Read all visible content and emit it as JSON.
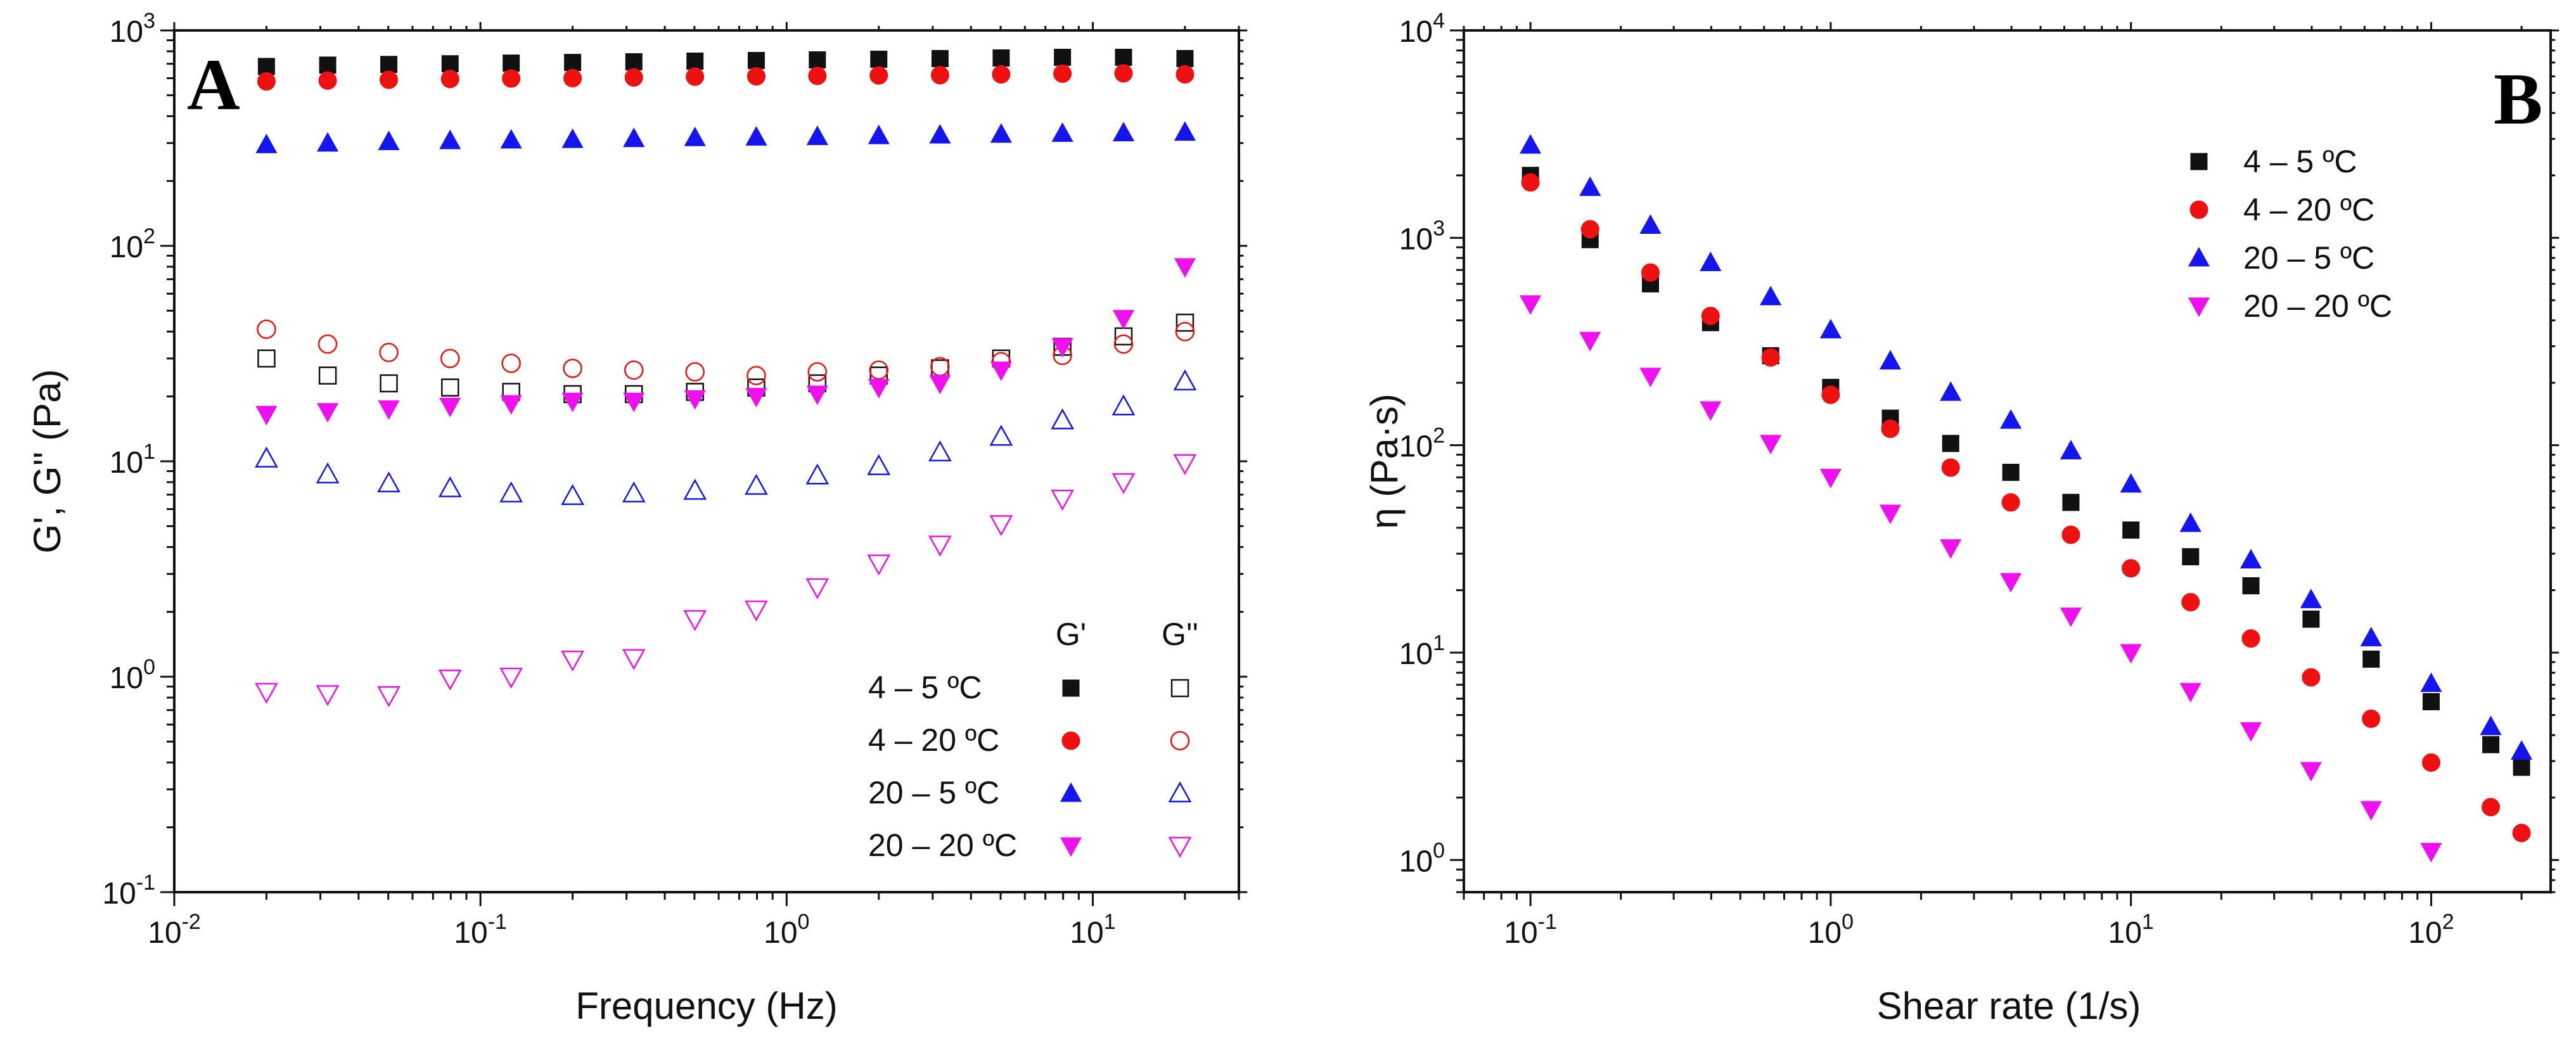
{
  "colors": {
    "black": "#111111",
    "red": "#ee1111",
    "blue": "#1515ee",
    "magenta": "#ee11ee"
  },
  "chart_data": [
    {
      "panel": "A",
      "type": "scatter",
      "x_scale": "log",
      "y_scale": "log",
      "xlim": [
        0.01,
        30
      ],
      "ylim": [
        0.1,
        1000
      ],
      "xlabel": "Frequency (Hz)",
      "ylabel": "G', G'' (Pa)",
      "x_ticks": [
        {
          "value": 0.01,
          "base": "10",
          "exp": "-2"
        },
        {
          "value": 0.1,
          "base": "10",
          "exp": "-1"
        },
        {
          "value": 1,
          "base": "10",
          "exp": "0"
        },
        {
          "value": 10,
          "base": "10",
          "exp": "1"
        }
      ],
      "y_ticks": [
        {
          "value": 0.1,
          "base": "10",
          "exp": "-1"
        },
        {
          "value": 1,
          "base": "10",
          "exp": "0"
        },
        {
          "value": 10,
          "base": "10",
          "exp": "1"
        },
        {
          "value": 100,
          "base": "10",
          "exp": "2"
        },
        {
          "value": 1000,
          "base": "10",
          "exp": "3"
        }
      ],
      "legend": {
        "position": "bottom-right",
        "column_headers": [
          "G'",
          "G''"
        ]
      },
      "x": [
        0.02,
        0.0317,
        0.0502,
        0.0796,
        0.126,
        0.2,
        0.317,
        0.502,
        0.796,
        1.26,
        2.0,
        3.17,
        5.02,
        7.96,
        12.6,
        20.0
      ],
      "series": [
        {
          "name": "4 – 5 ºC",
          "modulus": "G'",
          "color": "black",
          "marker": "square",
          "filled": true,
          "values": [
            680,
            690,
            695,
            700,
            705,
            710,
            715,
            720,
            725,
            730,
            735,
            740,
            745,
            750,
            750,
            740
          ]
        },
        {
          "name": "4 – 5 ºC",
          "modulus": "G''",
          "color": "black",
          "marker": "square",
          "filled": false,
          "values": [
            30,
            25,
            23,
            22,
            21,
            20.5,
            20.5,
            21,
            22,
            23,
            25,
            27,
            30,
            34,
            38,
            44
          ]
        },
        {
          "name": "4 – 20 ºC",
          "modulus": "G'",
          "color": "red",
          "marker": "circle",
          "filled": true,
          "values": [
            580,
            585,
            590,
            595,
            598,
            600,
            605,
            610,
            612,
            615,
            618,
            620,
            625,
            630,
            632,
            625
          ]
        },
        {
          "name": "4 – 20 ºC",
          "modulus": "G''",
          "color": "red",
          "marker": "circle",
          "filled": false,
          "values": [
            41,
            35,
            32,
            30,
            28.5,
            27,
            26.5,
            26,
            25,
            26,
            26.5,
            27.5,
            29,
            31,
            35,
            40
          ]
        },
        {
          "name": "20 – 5 ºC",
          "modulus": "G'",
          "color": "blue",
          "marker": "triangle-up",
          "filled": true,
          "values": [
            295,
            300,
            305,
            308,
            310,
            312,
            315,
            318,
            320,
            322,
            325,
            327,
            330,
            333,
            335,
            337
          ]
        },
        {
          "name": "20 – 5 ºC",
          "modulus": "G''",
          "color": "blue",
          "marker": "triangle-up",
          "filled": false,
          "values": [
            10.3,
            8.7,
            7.9,
            7.5,
            7.1,
            6.9,
            7.1,
            7.3,
            7.7,
            8.6,
            9.5,
            11,
            13,
            15.5,
            18,
            23.5
          ]
        },
        {
          "name": "20 – 20 ºC",
          "modulus": "G'",
          "color": "magenta",
          "marker": "triangle-down",
          "filled": true,
          "values": [
            16.5,
            17,
            17.5,
            18,
            18.5,
            19,
            19,
            19.5,
            20,
            20.5,
            22,
            23,
            26.5,
            34,
            46,
            80
          ]
        },
        {
          "name": "20 – 20 ºC",
          "modulus": "G''",
          "color": "magenta",
          "marker": "triangle-down",
          "filled": false,
          "values": [
            0.85,
            0.83,
            0.82,
            0.98,
            1.0,
            1.2,
            1.22,
            1.85,
            2.05,
            2.6,
            3.35,
            4.1,
            5.1,
            6.7,
            8.0,
            9.8
          ]
        }
      ]
    },
    {
      "panel": "B",
      "type": "scatter",
      "x_scale": "log",
      "y_scale": "log",
      "xlim": [
        0.06,
        250
      ],
      "ylim": [
        0.7,
        10000
      ],
      "xlabel": "Shear rate (1/s)",
      "ylabel": "η  (Pa·s)",
      "x_ticks": [
        {
          "value": 0.1,
          "base": "10",
          "exp": "-1"
        },
        {
          "value": 1,
          "base": "10",
          "exp": "0"
        },
        {
          "value": 10,
          "base": "10",
          "exp": "1"
        },
        {
          "value": 100,
          "base": "10",
          "exp": "2"
        }
      ],
      "y_ticks": [
        {
          "value": 1,
          "base": "10",
          "exp": "0"
        },
        {
          "value": 10,
          "base": "10",
          "exp": "1"
        },
        {
          "value": 100,
          "base": "10",
          "exp": "2"
        },
        {
          "value": 1000,
          "base": "10",
          "exp": "3"
        },
        {
          "value": 10000,
          "base": "10",
          "exp": "4"
        }
      ],
      "legend": {
        "position": "top-right"
      },
      "x": [
        0.1,
        0.158,
        0.251,
        0.398,
        0.631,
        1.0,
        1.58,
        2.51,
        3.98,
        6.31,
        10,
        15.8,
        25.1,
        39.8,
        63.1,
        100,
        158,
        200
      ],
      "series": [
        {
          "name": "4 – 5 ºC",
          "color": "black",
          "marker": "square",
          "filled": true,
          "values": [
            2000,
            980,
            600,
            390,
            270,
            190,
            135,
            102,
            74,
            53,
            39,
            29,
            21,
            14.5,
            9.3,
            5.8,
            3.6,
            2.8
          ]
        },
        {
          "name": "4 – 20 ºC",
          "color": "red",
          "marker": "circle",
          "filled": true,
          "values": [
            1850,
            1100,
            680,
            420,
            265,
            175,
            120,
            78,
            53,
            37,
            25.5,
            17.5,
            11.7,
            7.6,
            4.8,
            2.95,
            1.8,
            1.35
          ]
        },
        {
          "name": "20 – 5 ºC",
          "color": "blue",
          "marker": "triangle-up",
          "filled": true,
          "values": [
            2800,
            1750,
            1150,
            760,
            520,
            360,
            255,
            180,
            132,
            94,
            65,
            42,
            28,
            18,
            11.8,
            7.1,
            4.4,
            3.35
          ]
        },
        {
          "name": "20 – 20 ºC",
          "color": "magenta",
          "marker": "triangle-down",
          "filled": true,
          "values": [
            480,
            320,
            215,
            148,
            102,
            70,
            47,
            32,
            22,
            15,
            10,
            6.5,
            4.2,
            2.7,
            1.75,
            1.1
          ]
        }
      ]
    }
  ]
}
